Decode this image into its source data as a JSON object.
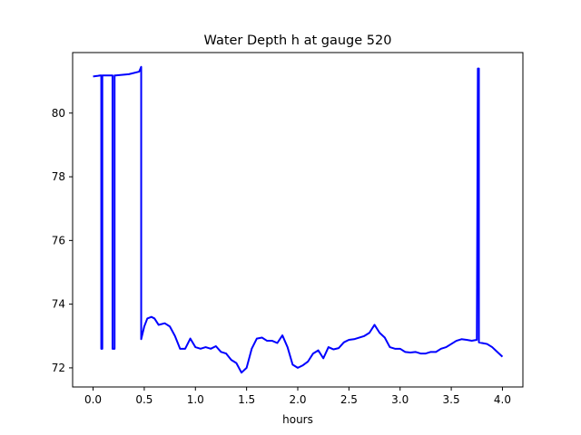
{
  "chart_data": {
    "type": "line",
    "title": "Water Depth h at gauge 520",
    "xlabel": "hours",
    "ylabel": "",
    "xlim": [
      -0.2,
      4.2
    ],
    "ylim": [
      71.4,
      81.9
    ],
    "xticks": [
      "0.0",
      "0.5",
      "1.0",
      "1.5",
      "2.0",
      "2.5",
      "3.0",
      "3.5",
      "4.0"
    ],
    "yticks": [
      "72",
      "74",
      "76",
      "78",
      "80"
    ],
    "grid": false,
    "legend": "none",
    "series": [
      {
        "color": "#0000ff",
        "x": [
          0.0,
          0.05,
          0.07,
          0.08,
          0.08,
          0.09,
          0.09,
          0.19,
          0.19,
          0.21,
          0.21,
          0.22,
          0.35,
          0.45,
          0.47,
          0.47,
          0.5,
          0.53,
          0.57,
          0.6,
          0.64,
          0.7,
          0.75,
          0.8,
          0.85,
          0.9,
          0.95,
          1.0,
          1.05,
          1.1,
          1.15,
          1.2,
          1.25,
          1.3,
          1.35,
          1.4,
          1.45,
          1.5,
          1.55,
          1.6,
          1.65,
          1.7,
          1.75,
          1.8,
          1.85,
          1.9,
          1.95,
          2.0,
          2.05,
          2.1,
          2.15,
          2.2,
          2.25,
          2.3,
          2.35,
          2.4,
          2.45,
          2.5,
          2.55,
          2.6,
          2.65,
          2.7,
          2.75,
          2.8,
          2.85,
          2.9,
          2.95,
          3.0,
          3.05,
          3.1,
          3.15,
          3.2,
          3.25,
          3.3,
          3.35,
          3.4,
          3.45,
          3.5,
          3.55,
          3.6,
          3.65,
          3.7,
          3.75,
          3.76,
          3.77,
          3.77,
          3.8,
          3.85,
          3.9,
          3.95,
          4.0
        ],
        "y": [
          81.15,
          81.17,
          81.18,
          81.18,
          72.6,
          72.6,
          81.18,
          81.18,
          72.6,
          72.6,
          81.18,
          81.18,
          81.22,
          81.3,
          81.45,
          72.9,
          73.3,
          73.55,
          73.6,
          73.55,
          73.35,
          73.4,
          73.3,
          73.0,
          72.6,
          72.6,
          72.92,
          72.65,
          72.6,
          72.65,
          72.6,
          72.68,
          72.5,
          72.45,
          72.25,
          72.15,
          71.85,
          72.0,
          72.6,
          72.92,
          72.95,
          72.85,
          72.85,
          72.78,
          73.02,
          72.65,
          72.1,
          72.0,
          72.08,
          72.2,
          72.45,
          72.55,
          72.3,
          72.65,
          72.58,
          72.62,
          72.8,
          72.88,
          72.9,
          72.95,
          73.0,
          73.1,
          73.35,
          73.1,
          72.95,
          72.65,
          72.6,
          72.6,
          72.5,
          72.48,
          72.5,
          72.45,
          72.45,
          72.5,
          72.5,
          72.6,
          72.65,
          72.75,
          72.85,
          72.9,
          72.88,
          72.85,
          72.88,
          81.4,
          81.4,
          72.8,
          72.78,
          72.75,
          72.65,
          72.5,
          72.35
        ]
      }
    ]
  }
}
